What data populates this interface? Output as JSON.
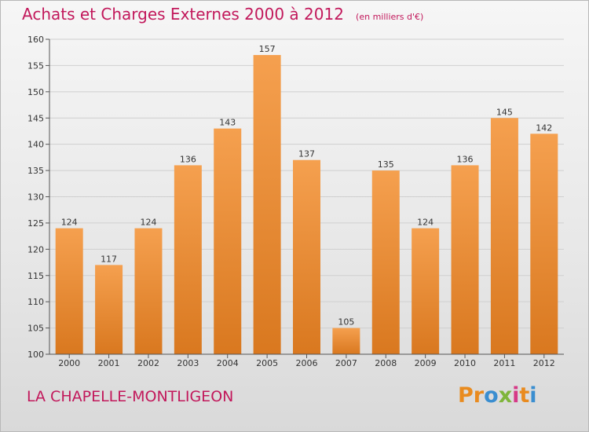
{
  "header": {
    "title": "Achats et Charges Externes 2000 à 2012",
    "unit": "(en milliers d'€)"
  },
  "footer": {
    "commune": "LA CHAPELLE-MONTLIGEON",
    "logo_text": "Proxiti",
    "logo_colors": [
      "#e98b1f",
      "#e98b1f",
      "#3a8ed0",
      "#7fb53b",
      "#d63a87",
      "#e98b1f",
      "#3a8ed0"
    ]
  },
  "colors": {
    "title": "#c2185b",
    "bar_light": "#f5a04f",
    "bar_dark": "#d9781f",
    "grid": "#cfcfcf",
    "axis": "#555555"
  },
  "chart_data": {
    "type": "bar",
    "categories": [
      "2000",
      "2001",
      "2002",
      "2003",
      "2004",
      "2005",
      "2006",
      "2007",
      "2008",
      "2009",
      "2010",
      "2011",
      "2012"
    ],
    "values": [
      124,
      117,
      124,
      136,
      143,
      157,
      137,
      105,
      135,
      124,
      136,
      145,
      142
    ],
    "ylim": [
      100,
      160
    ],
    "yticks": [
      100,
      105,
      110,
      115,
      120,
      125,
      130,
      135,
      140,
      145,
      150,
      155,
      160
    ],
    "grid": true,
    "title": "Achats et Charges Externes 2000 à 2012",
    "xlabel": "",
    "ylabel": ""
  }
}
